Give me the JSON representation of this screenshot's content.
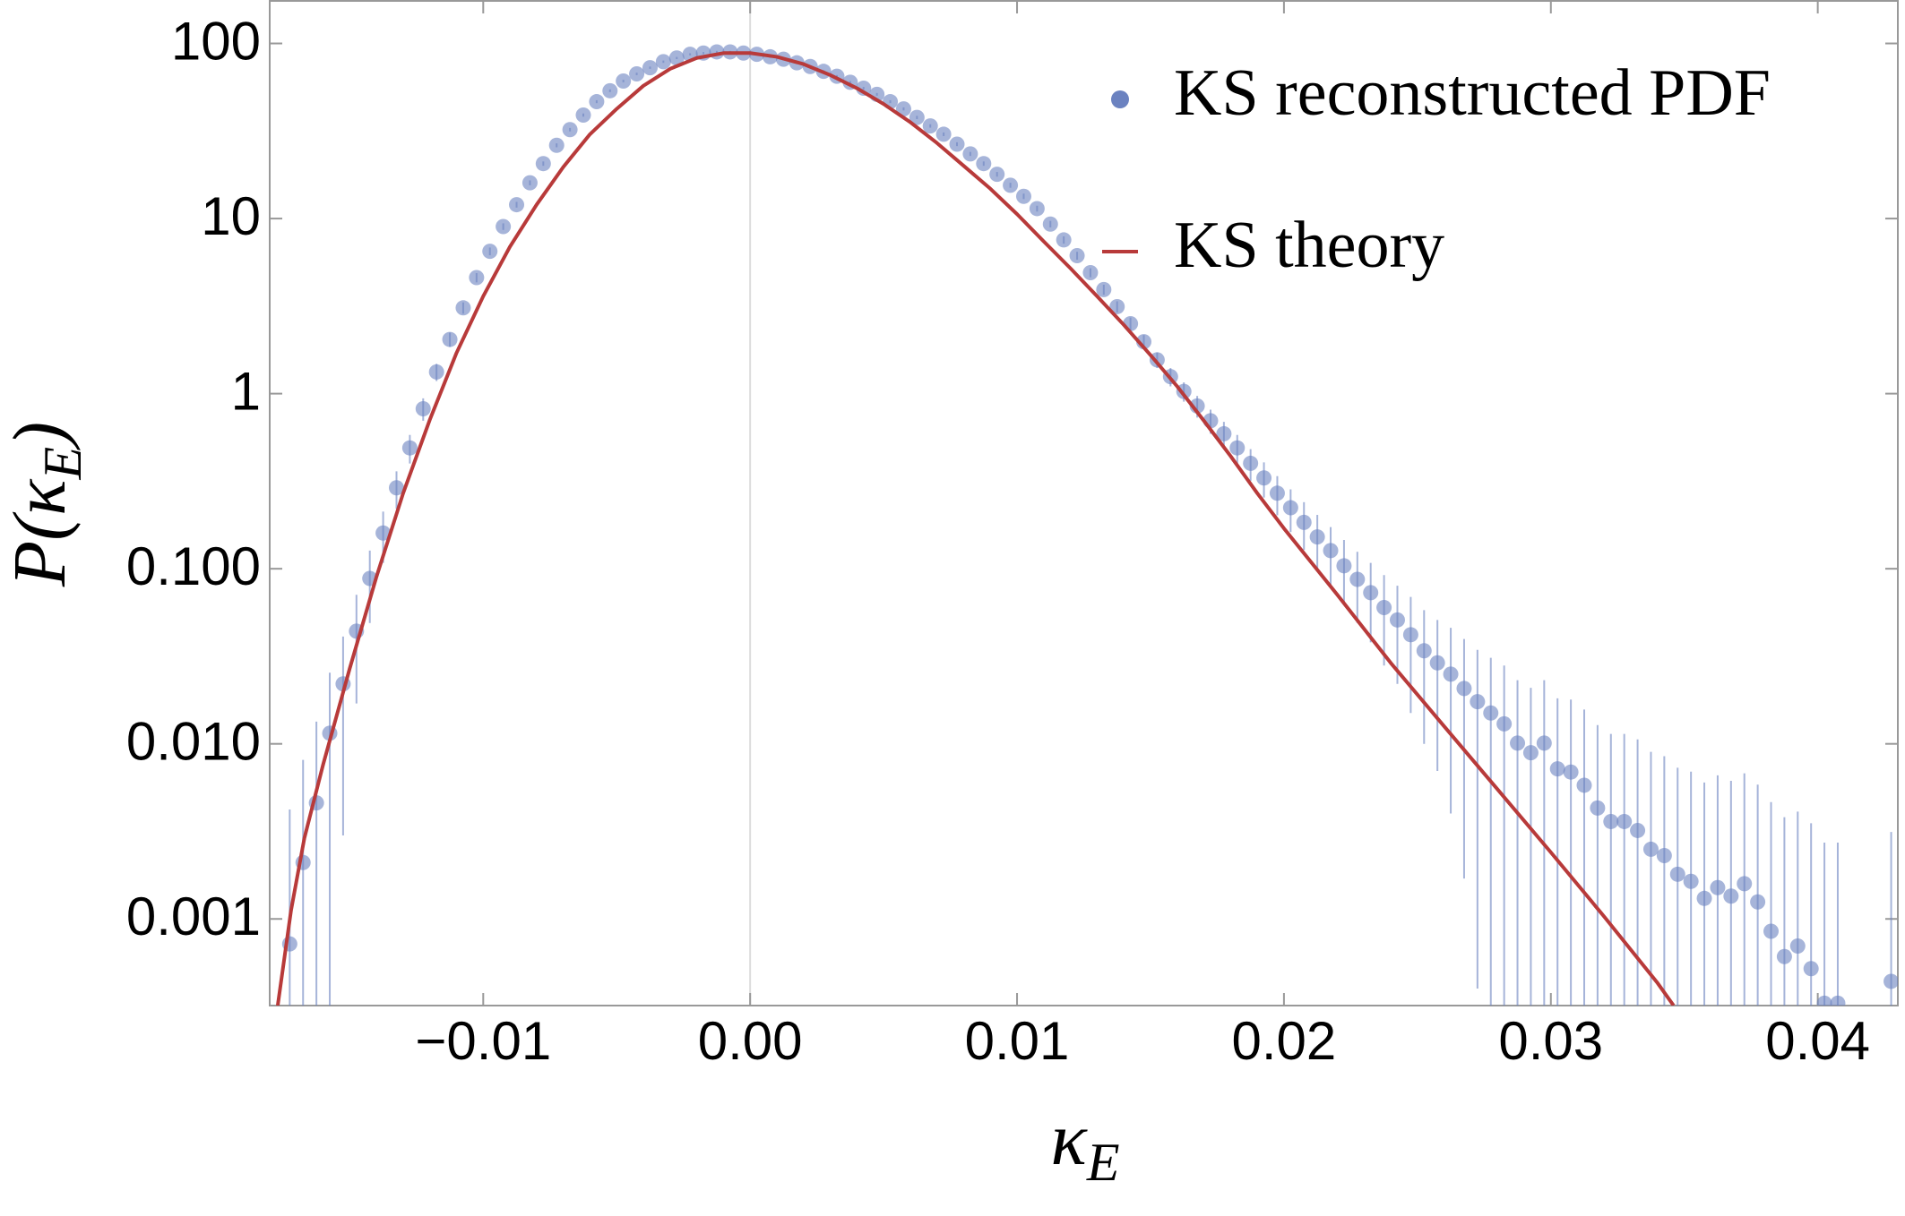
{
  "chart_data": {
    "type": "scatter",
    "xlabel": [
      "κ",
      "E"
    ],
    "ylabel": [
      "P(κ",
      "E",
      ")"
    ],
    "xlim": [
      -0.018,
      0.043
    ],
    "ylim": [
      0.00032,
      175
    ],
    "yscale": "log",
    "xticks": [
      {
        "value": -0.01,
        "label": "−0.01"
      },
      {
        "value": 0,
        "label": "0.00"
      },
      0.01,
      0.02,
      0.03,
      0.04
    ],
    "yticks": [
      100,
      10,
      1,
      {
        "value": 0.1,
        "label": "0.100"
      },
      {
        "value": 0.01,
        "label": "0.010"
      },
      0.001
    ],
    "zero_line": true,
    "legend": "top-right",
    "series": [
      {
        "name": "KS reconstructed PDF",
        "type": "scatter",
        "color": "#6b82c0",
        "x": [
          -0.01725,
          -0.01675,
          -0.01625,
          -0.01575,
          -0.01525,
          -0.01475,
          -0.01425,
          -0.01375,
          -0.01325,
          -0.01275,
          -0.01225,
          -0.01175,
          -0.01125,
          -0.01075,
          -0.01025,
          -0.00975,
          -0.00925,
          -0.00875,
          -0.00825,
          -0.00775,
          -0.00725,
          -0.00675,
          -0.00625,
          -0.00575,
          -0.00525,
          -0.00475,
          -0.00425,
          -0.00375,
          -0.00325,
          -0.00275,
          -0.00225,
          -0.00175,
          -0.00125,
          -0.00075,
          -0.00025,
          0.00025,
          0.00075,
          0.00125,
          0.00175,
          0.00225,
          0.00275,
          0.00325,
          0.00375,
          0.00425,
          0.00475,
          0.00525,
          0.00575,
          0.00625,
          0.00675,
          0.00725,
          0.00775,
          0.00825,
          0.00875,
          0.00925,
          0.00975,
          0.01025,
          0.01075,
          0.01125,
          0.01175,
          0.01225,
          0.01275,
          0.01325,
          0.01375,
          0.01425,
          0.01475,
          0.01525,
          0.01575,
          0.01625,
          0.01675,
          0.01725,
          0.01775,
          0.01825,
          0.01875,
          0.01925,
          0.01975,
          0.02025,
          0.02075,
          0.02125,
          0.02175,
          0.02225,
          0.02275,
          0.02325,
          0.02375,
          0.02425,
          0.02475,
          0.02525,
          0.02575,
          0.02625,
          0.02675,
          0.02725,
          0.02775,
          0.02825,
          0.02875,
          0.02925,
          0.02975,
          0.03025,
          0.03075,
          0.03125,
          0.03175,
          0.03225,
          0.03275,
          0.03325,
          0.03375,
          0.03425,
          0.03475,
          0.03525,
          0.03575,
          0.03625,
          0.03675,
          0.03725,
          0.03775,
          0.03825,
          0.03875,
          0.03925,
          0.03975,
          0.04025,
          0.04075,
          0.04125,
          0.04175,
          0.04225,
          0.04275
        ],
        "values": [
          0.00072,
          0.0021,
          0.0046,
          0.0115,
          0.022,
          0.044,
          0.088,
          0.16,
          0.29,
          0.49,
          0.82,
          1.33,
          2.04,
          3.09,
          4.6,
          6.5,
          9.0,
          12,
          16,
          20.6,
          26.2,
          32.2,
          39,
          46.5,
          53.7,
          61,
          67,
          72.7,
          78.7,
          82.6,
          86.7,
          88.1,
          89.5,
          89.5,
          88.1,
          86.7,
          83.9,
          81.3,
          77.5,
          73.9,
          69.3,
          65,
          60,
          55.5,
          51.2,
          46.5,
          42.3,
          37.8,
          33.8,
          30.3,
          26.6,
          23.4,
          20.6,
          17.9,
          15.5,
          13.4,
          11.4,
          9.3,
          7.55,
          6.14,
          4.91,
          3.93,
          3.14,
          2.51,
          1.98,
          1.56,
          1.25,
          1.03,
          0.85,
          0.7,
          0.59,
          0.49,
          0.4,
          0.33,
          0.27,
          0.223,
          0.184,
          0.152,
          0.127,
          0.104,
          0.087,
          0.073,
          0.06,
          0.051,
          0.042,
          0.034,
          0.029,
          0.025,
          0.0207,
          0.0174,
          0.015,
          0.013,
          0.0101,
          0.0089,
          0.0101,
          0.0072,
          0.0069,
          0.0058,
          0.0043,
          0.0036,
          0.0036,
          0.0032,
          0.0025,
          0.0023,
          0.0018,
          0.00164,
          0.00131,
          0.00151,
          0.00135,
          0.00159,
          0.00125,
          0.00085,
          0.00061,
          0.0007,
          0.00052,
          0.00033,
          0.00033,
          null,
          null,
          null,
          0.00044
        ],
        "errors": [
          0.0035,
          0.006,
          0.0088,
          0.014,
          0.019,
          0.027,
          0.039,
          0.052,
          0.07,
          0.091,
          0.12,
          0.15,
          0.19,
          0.23,
          0.28,
          0.33,
          0.39,
          0.45,
          0.52,
          0.59,
          0.67,
          0.74,
          0.81,
          0.89,
          0.95,
          1.0,
          1.1,
          1.1,
          1.2,
          1.2,
          1.2,
          1.2,
          1.2,
          1.2,
          1.2,
          1.2,
          1.2,
          1.2,
          1.1,
          1.1,
          1.1,
          1.0,
          1.0,
          0.97,
          0.93,
          0.89,
          0.85,
          0.8,
          0.76,
          0.72,
          0.67,
          0.63,
          0.59,
          0.55,
          0.51,
          0.48,
          0.44,
          0.4,
          0.36,
          0.32,
          0.29,
          0.26,
          0.23,
          0.21,
          0.18,
          0.16,
          0.15,
          0.13,
          0.12,
          0.11,
          0.1,
          0.091,
          0.082,
          0.075,
          0.068,
          0.061,
          0.056,
          0.051,
          0.046,
          0.042,
          0.038,
          0.035,
          0.032,
          0.029,
          0.027,
          0.024,
          0.022,
          0.021,
          0.019,
          0.017,
          0.016,
          0.015,
          0.013,
          0.012,
          0.013,
          0.011,
          0.011,
          0.0099,
          0.0085,
          0.0078,
          0.0078,
          0.0074,
          0.0065,
          0.0062,
          0.0055,
          0.0053,
          0.0047,
          0.0051,
          0.0048,
          0.0052,
          0.0046,
          0.0038,
          0.0032,
          0.0034,
          0.003,
          0.0024,
          0.0024,
          null,
          null,
          null,
          0.0027
        ]
      },
      {
        "name": "KS theory",
        "type": "line",
        "color": "#b83a3a",
        "x": [
          -0.0177,
          -0.0172,
          -0.0167,
          -0.016,
          -0.015,
          -0.014,
          -0.013,
          -0.012,
          -0.011,
          -0.01,
          -0.009,
          -0.008,
          -0.007,
          -0.006,
          -0.005,
          -0.004,
          -0.003,
          -0.002,
          -0.001,
          0,
          0.001,
          0.002,
          0.003,
          0.004,
          0.005,
          0.006,
          0.007,
          0.008,
          0.009,
          0.01,
          0.011,
          0.012,
          0.013,
          0.014,
          0.015,
          0.016,
          0.017,
          0.018,
          0.019,
          0.02,
          0.022,
          0.024,
          0.026,
          0.028,
          0.03,
          0.032,
          0.034,
          0.0346
        ],
        "values": [
          0.00032,
          0.00112,
          0.0029,
          0.0076,
          0.027,
          0.09,
          0.27,
          0.71,
          1.71,
          3.6,
          6.9,
          12,
          19.7,
          30.3,
          42.3,
          57.3,
          71.6,
          82.6,
          88.1,
          88.1,
          83.9,
          76.2,
          66,
          55.5,
          45.1,
          35.5,
          27,
          20,
          14.8,
          10.6,
          7.4,
          5.2,
          3.6,
          2.47,
          1.66,
          1.1,
          0.7,
          0.44,
          0.27,
          0.17,
          0.071,
          0.029,
          0.0126,
          0.0055,
          0.0024,
          0.00103,
          0.00043,
          0.00032
        ]
      }
    ]
  }
}
